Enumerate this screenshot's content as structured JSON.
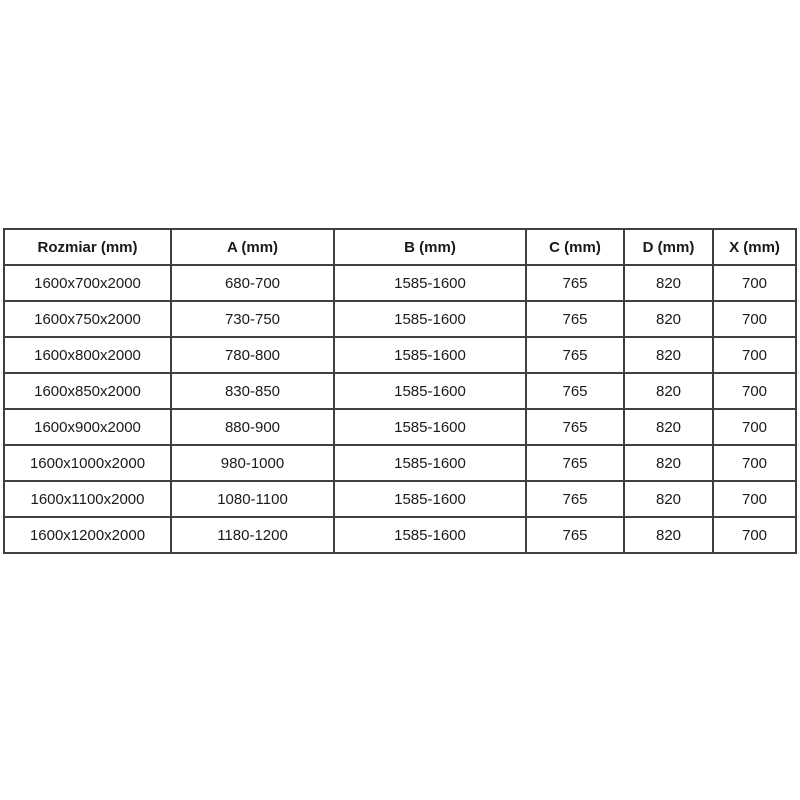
{
  "colors": {
    "background": "#ffffff",
    "table_border": "#3f3f3f",
    "text": "#1a1a1a"
  },
  "table": {
    "columns": [
      "Rozmiar (mm)",
      "A (mm)",
      "B (mm)",
      "C (mm)",
      "D (mm)",
      "X (mm)"
    ],
    "rows": [
      {
        "cells": [
          "1600x700x2000",
          "680-700",
          "1585-1600",
          "765",
          "820",
          "700"
        ]
      },
      {
        "cells": [
          "1600x750x2000",
          "730-750",
          "1585-1600",
          "765",
          "820",
          "700"
        ]
      },
      {
        "cells": [
          "1600x800x2000",
          "780-800",
          "1585-1600",
          "765",
          "820",
          "700"
        ]
      },
      {
        "cells": [
          "1600x850x2000",
          "830-850",
          "1585-1600",
          "765",
          "820",
          "700"
        ]
      },
      {
        "cells": [
          "1600x900x2000",
          "880-900",
          "1585-1600",
          "765",
          "820",
          "700"
        ]
      },
      {
        "cells": [
          "1600x1000x2000",
          "980-1000",
          "1585-1600",
          "765",
          "820",
          "700"
        ]
      },
      {
        "cells": [
          "1600x1100x2000",
          "1080-1100",
          "1585-1600",
          "765",
          "820",
          "700"
        ]
      },
      {
        "cells": [
          "1600x1200x2000",
          "1180-1200",
          "1585-1600",
          "765",
          "820",
          "700"
        ]
      }
    ]
  }
}
